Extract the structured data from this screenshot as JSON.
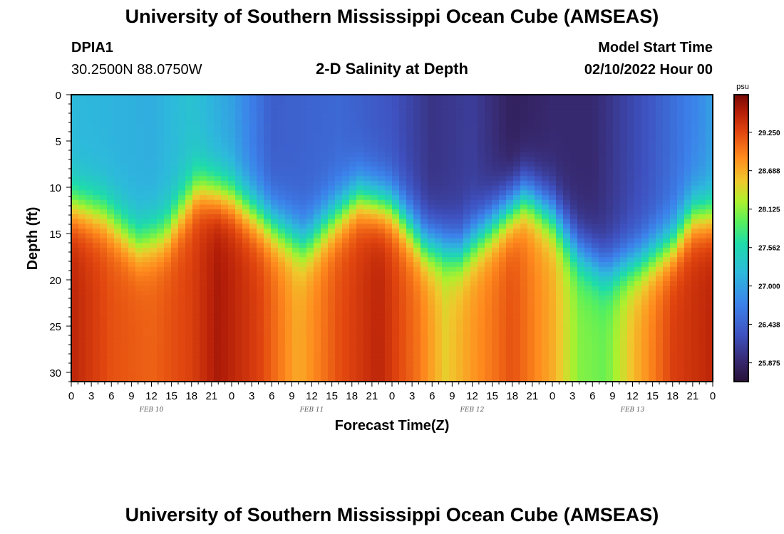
{
  "header": {
    "title": "University of Southern Mississippi Ocean Cube (AMSEAS)",
    "station_id": "DPIA1",
    "station_coords": "30.2500N  88.0750W",
    "chart_title": "2-D Salinity at Depth",
    "model_start_label": "Model Start Time",
    "model_start_value": "02/10/2022 Hour 00"
  },
  "footer": {
    "title": "University of Southern Mississippi Ocean Cube (AMSEAS)"
  },
  "chart_data": {
    "type": "heatmap",
    "title": "2-D Salinity at Depth",
    "xlabel": "Forecast Time(Z)",
    "ylabel": "Depth (ft)",
    "x_tick_labels": [
      "0",
      "3",
      "6",
      "9",
      "12",
      "15",
      "18",
      "21",
      "0",
      "3",
      "6",
      "9",
      "12",
      "15",
      "18",
      "21",
      "0",
      "3",
      "6",
      "9",
      "12",
      "15",
      "18",
      "21",
      "0",
      "3",
      "6",
      "9",
      "12",
      "15",
      "18",
      "21",
      "0"
    ],
    "x_range_hours": [
      0,
      96
    ],
    "day_labels": [
      {
        "text": "FEB 10",
        "hour": 12
      },
      {
        "text": "FEB 11",
        "hour": 36
      },
      {
        "text": "FEB 12",
        "hour": 60
      },
      {
        "text": "FEB 13",
        "hour": 84
      }
    ],
    "y_tick_labels": [
      "0",
      "5",
      "10",
      "15",
      "20",
      "25",
      "30"
    ],
    "y_range_ft": [
      0,
      31
    ],
    "colorbar": {
      "unit": "psu",
      "range": [
        25.6,
        29.8
      ],
      "tick_labels": [
        "29.250",
        "28.688",
        "28.125",
        "27.562",
        "27.000",
        "26.438",
        "25.875"
      ],
      "tick_values": [
        29.25,
        28.688,
        28.125,
        27.562,
        27.0,
        26.438,
        25.875
      ]
    },
    "surface_salinity_psu_by_hour": [
      {
        "h": 0,
        "v": 27.2
      },
      {
        "h": 12,
        "v": 27.1
      },
      {
        "h": 18,
        "v": 27.3
      },
      {
        "h": 24,
        "v": 27.0
      },
      {
        "h": 30,
        "v": 26.4
      },
      {
        "h": 40,
        "v": 26.5
      },
      {
        "h": 48,
        "v": 26.3
      },
      {
        "h": 54,
        "v": 26.0
      },
      {
        "h": 60,
        "v": 26.1
      },
      {
        "h": 66,
        "v": 25.8
      },
      {
        "h": 72,
        "v": 25.9
      },
      {
        "h": 78,
        "v": 25.9
      },
      {
        "h": 86,
        "v": 26.3
      },
      {
        "h": 94,
        "v": 26.8
      },
      {
        "h": 96,
        "v": 27.0
      }
    ],
    "halocline_depth_ft_by_hour": [
      {
        "h": 0,
        "v": 12
      },
      {
        "h": 5,
        "v": 13
      },
      {
        "h": 10,
        "v": 16
      },
      {
        "h": 14,
        "v": 15
      },
      {
        "h": 19,
        "v": 10
      },
      {
        "h": 24,
        "v": 11
      },
      {
        "h": 30,
        "v": 14
      },
      {
        "h": 35,
        "v": 16
      },
      {
        "h": 38,
        "v": 14
      },
      {
        "h": 43,
        "v": 11
      },
      {
        "h": 48,
        "v": 12
      },
      {
        "h": 53,
        "v": 16
      },
      {
        "h": 58,
        "v": 17
      },
      {
        "h": 63,
        "v": 14
      },
      {
        "h": 68,
        "v": 11
      },
      {
        "h": 72,
        "v": 13
      },
      {
        "h": 76,
        "v": 17
      },
      {
        "h": 80,
        "v": 19
      },
      {
        "h": 85,
        "v": 18
      },
      {
        "h": 90,
        "v": 16
      },
      {
        "h": 93,
        "v": 13
      },
      {
        "h": 96,
        "v": 13
      }
    ],
    "bottom_salinity_psu_by_hour": [
      {
        "h": 0,
        "v": 29.5
      },
      {
        "h": 6,
        "v": 29.2
      },
      {
        "h": 12,
        "v": 29.1
      },
      {
        "h": 18,
        "v": 29.3
      },
      {
        "h": 22,
        "v": 29.6
      },
      {
        "h": 28,
        "v": 29.3
      },
      {
        "h": 34,
        "v": 28.7
      },
      {
        "h": 40,
        "v": 29.2
      },
      {
        "h": 46,
        "v": 29.5
      },
      {
        "h": 52,
        "v": 29.0
      },
      {
        "h": 56,
        "v": 28.5
      },
      {
        "h": 60,
        "v": 28.8
      },
      {
        "h": 66,
        "v": 29.2
      },
      {
        "h": 72,
        "v": 28.7
      },
      {
        "h": 76,
        "v": 28.1
      },
      {
        "h": 80,
        "v": 28.0
      },
      {
        "h": 84,
        "v": 28.6
      },
      {
        "h": 90,
        "v": 29.3
      },
      {
        "h": 96,
        "v": 29.5
      }
    ],
    "halocline_thickness_ft": 3.5
  }
}
